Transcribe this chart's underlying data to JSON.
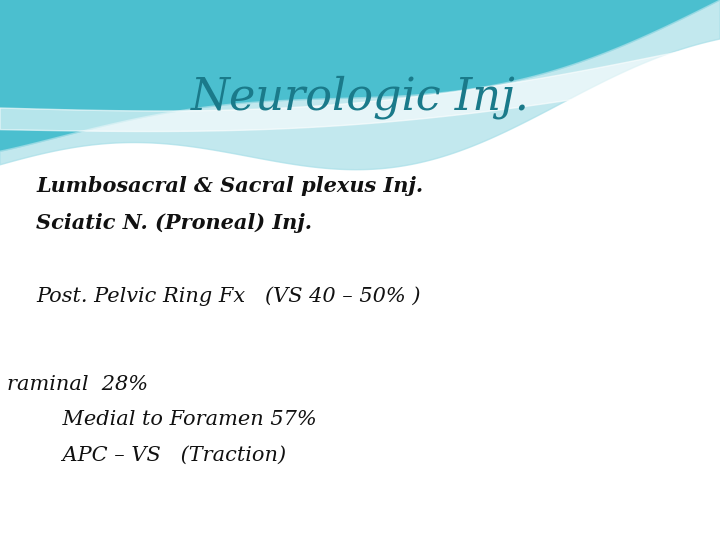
{
  "title": "Neurologic Inj.",
  "title_color": "#1a7a8a",
  "title_fontsize": 32,
  "bg_color": "#ffffff",
  "line1": "Lumbosacral & Sacral plexus Inj.",
  "line2": "Sciatic N. (Proneal) Inj.",
  "line3": "Post. Pelvic Ring Fx   (VS 40 – 50% )",
  "line4": "raminal  28%",
  "line5": "    Medial to Foramen 57%",
  "line6": "    APC – VS   (Traction)",
  "text_color": "#111111",
  "text_fontsize": 15,
  "wave_teal": "#4bbfcf",
  "wave_light": "#a8dfe8",
  "wave_white": "#e8f7f9"
}
